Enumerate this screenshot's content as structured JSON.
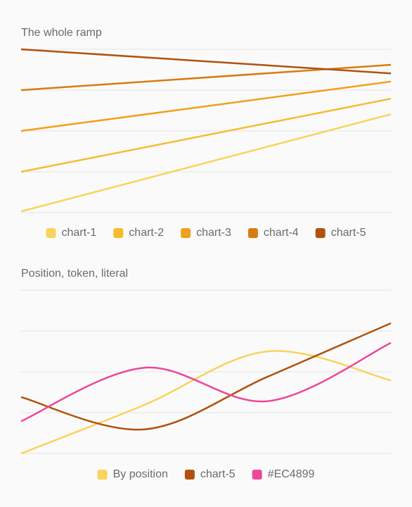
{
  "chart_data": [
    {
      "type": "line",
      "title": "The whole ramp",
      "x": [
        0,
        1
      ],
      "xlim": [
        0,
        1
      ],
      "ylim": [
        0,
        4
      ],
      "yticks": [
        0,
        1,
        2,
        3,
        4
      ],
      "grid": true,
      "curve": "straight",
      "series": [
        {
          "name": "chart-1",
          "color": "#f8d45c",
          "values": [
            0.03,
            2.41
          ]
        },
        {
          "name": "chart-2",
          "color": "#f5bd2e",
          "values": [
            1.0,
            2.79
          ]
        },
        {
          "name": "chart-3",
          "color": "#f0a01c",
          "values": [
            2.0,
            3.21
          ]
        },
        {
          "name": "chart-4",
          "color": "#d97c10",
          "values": [
            3.0,
            3.62
          ]
        },
        {
          "name": "chart-5",
          "color": "#b0520e",
          "values": [
            4.0,
            3.41
          ]
        }
      ]
    },
    {
      "type": "line",
      "title": "Position, token, literal",
      "x": [
        0,
        1,
        2,
        3
      ],
      "xlim": [
        0,
        3
      ],
      "ylim": [
        0,
        4
      ],
      "yticks": [
        0,
        1,
        2,
        3,
        4
      ],
      "grid": true,
      "curve": "smooth",
      "series": [
        {
          "name": "By position",
          "color": "#f8d45c",
          "values": [
            0,
            1.19,
            2.5,
            1.79
          ]
        },
        {
          "name": "chart-5",
          "color": "#b0520e",
          "values": [
            1.38,
            0.59,
            1.88,
            3.19
          ]
        },
        {
          "name": "#EC4899",
          "color": "#ec4899",
          "values": [
            0.79,
            2.1,
            1.28,
            2.71
          ]
        }
      ]
    }
  ]
}
